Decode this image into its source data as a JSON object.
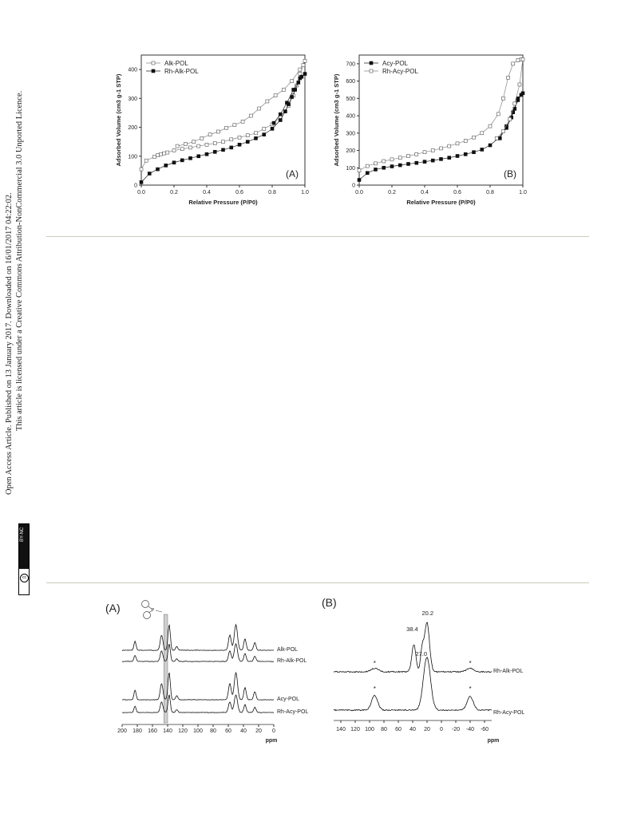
{
  "side_text": {
    "line1": "Open Access Article. Published on 13 January 2017. Downloaded on 16/01/2017 04:22:02.",
    "line2": "This article is licensed under a Creative Commons Attribution-NonCommercial 3.0 Unported Licence.",
    "badge_cc": "cc",
    "badge_text": "BY-NC"
  },
  "chart_data": [
    {
      "type": "scatter",
      "panel_label": "(A)",
      "xlabel": "Relative Pressure (P/P0)",
      "ylabel": "Adsorbed Volume (cm3 g-1 STP)",
      "xlim": [
        0.0,
        1.0
      ],
      "ylim": [
        0,
        450
      ],
      "xticks": [
        "0.0",
        "0.2",
        "0.4",
        "0.6",
        "0.8",
        "1.0"
      ],
      "yticks": [
        "0",
        "100",
        "200",
        "300",
        "400"
      ],
      "legend_position": "top-left",
      "series": [
        {
          "name": "Alk-POL",
          "marker": "open-square",
          "x": [
            0.0,
            0.03,
            0.08,
            0.1,
            0.12,
            0.14,
            0.16,
            0.2,
            0.25,
            0.3,
            0.35,
            0.4,
            0.45,
            0.5,
            0.55,
            0.6,
            0.65,
            0.7,
            0.75,
            0.8,
            0.85,
            0.9,
            0.93,
            0.95,
            0.97,
            0.99,
            1.0,
            0.97,
            0.92,
            0.87,
            0.82,
            0.77,
            0.72,
            0.67,
            0.62,
            0.57,
            0.52,
            0.47,
            0.42,
            0.37,
            0.32,
            0.27,
            0.22
          ],
          "y": [
            55,
            85,
            98,
            103,
            107,
            110,
            113,
            120,
            125,
            130,
            135,
            140,
            145,
            150,
            158,
            165,
            172,
            180,
            195,
            210,
            235,
            275,
            310,
            345,
            385,
            415,
            430,
            400,
            360,
            330,
            310,
            290,
            265,
            240,
            220,
            208,
            198,
            185,
            175,
            162,
            150,
            142,
            135
          ]
        },
        {
          "name": "Rh-Alk-POL",
          "marker": "filled-square",
          "x": [
            0.0,
            0.05,
            0.1,
            0.15,
            0.2,
            0.25,
            0.3,
            0.35,
            0.4,
            0.45,
            0.5,
            0.55,
            0.6,
            0.65,
            0.7,
            0.75,
            0.8,
            0.85,
            0.88,
            0.9,
            0.92,
            0.94,
            0.96,
            0.98,
            1.0,
            0.97,
            0.93,
            0.89,
            0.85,
            0.81
          ],
          "y": [
            10,
            40,
            55,
            68,
            78,
            86,
            93,
            100,
            107,
            115,
            122,
            130,
            140,
            150,
            162,
            175,
            195,
            225,
            255,
            280,
            305,
            330,
            355,
            375,
            385,
            370,
            330,
            285,
            245,
            215
          ]
        }
      ]
    },
    {
      "type": "scatter",
      "panel_label": "(B)",
      "xlabel": "Relative Pressure (P/P0)",
      "ylabel": "Adsorbed Volume (cm3 g-1 STP)",
      "xlim": [
        0.0,
        1.0
      ],
      "ylim": [
        0,
        750
      ],
      "xticks": [
        "0.0",
        "0.2",
        "0.4",
        "0.6",
        "0.8",
        "1.0"
      ],
      "yticks": [
        "0",
        "100",
        "200",
        "300",
        "400",
        "500",
        "600",
        "700"
      ],
      "legend_position": "top-left",
      "series": [
        {
          "name": "Acy-POL",
          "marker": "filled-square",
          "x": [
            0.0,
            0.05,
            0.1,
            0.15,
            0.2,
            0.25,
            0.3,
            0.35,
            0.4,
            0.45,
            0.5,
            0.55,
            0.6,
            0.65,
            0.7,
            0.75,
            0.8,
            0.85,
            0.9,
            0.93,
            0.95,
            0.97,
            0.99,
            1.0,
            0.97,
            0.94,
            0.9,
            0.86
          ],
          "y": [
            30,
            70,
            90,
            100,
            108,
            115,
            122,
            128,
            135,
            142,
            150,
            158,
            168,
            178,
            190,
            205,
            230,
            270,
            330,
            390,
            440,
            490,
            520,
            530,
            500,
            420,
            340,
            270
          ]
        },
        {
          "name": "Rh-Acy-POL",
          "marker": "open-square",
          "x": [
            0.0,
            0.05,
            0.1,
            0.15,
            0.2,
            0.25,
            0.3,
            0.35,
            0.4,
            0.45,
            0.5,
            0.55,
            0.6,
            0.65,
            0.7,
            0.75,
            0.8,
            0.85,
            0.88,
            0.91,
            0.94,
            0.97,
            0.99,
            1.0,
            0.98,
            0.95,
            0.92,
            0.88,
            0.84
          ],
          "y": [
            85,
            110,
            125,
            138,
            148,
            158,
            168,
            178,
            190,
            200,
            212,
            225,
            240,
            255,
            275,
            300,
            340,
            410,
            500,
            620,
            700,
            720,
            725,
            725,
            580,
            470,
            380,
            310,
            270
          ]
        }
      ]
    },
    {
      "type": "line",
      "panel_label": "(A)",
      "xlabel": "ppm",
      "xlim": [
        200,
        0
      ],
      "xticks": [
        "200",
        "180",
        "160",
        "140",
        "120",
        "100",
        "80",
        "60",
        "40",
        "20",
        "0"
      ],
      "highlight_band_ppm": [
        145,
        140
      ],
      "series": [
        {
          "name": "Alk-POL",
          "peaks_ppm": [
            183,
            148,
            138,
            128,
            58,
            50,
            38,
            25
          ]
        },
        {
          "name": "Rh-Alk-POL",
          "peaks_ppm": [
            183,
            148,
            138,
            128,
            58,
            50,
            38,
            25
          ]
        },
        {
          "name": "Acy-POL",
          "peaks_ppm": [
            183,
            148,
            138,
            128,
            58,
            50,
            38,
            25
          ]
        },
        {
          "name": "Rh-Acy-POL",
          "peaks_ppm": [
            183,
            148,
            138,
            128,
            58,
            50,
            38,
            25
          ]
        }
      ]
    },
    {
      "type": "line",
      "panel_label": "(B)",
      "xlabel": "ppm",
      "xlim": [
        150,
        -70
      ],
      "xticks": [
        "140",
        "120",
        "100",
        "80",
        "60",
        "40",
        "20",
        "0",
        "-20",
        "-40",
        "-60"
      ],
      "annotations": [
        "20.2",
        "38.4",
        "27.0",
        "*",
        "*",
        "*",
        "*"
      ],
      "series": [
        {
          "name": "Rh-Alk-POL",
          "peaks_ppm": [
            20.2,
            38.4,
            27.0,
            93,
            -40
          ]
        },
        {
          "name": "Rh-Acy-POL",
          "peaks_ppm": [
            20.2,
            93,
            -40
          ]
        }
      ]
    }
  ]
}
